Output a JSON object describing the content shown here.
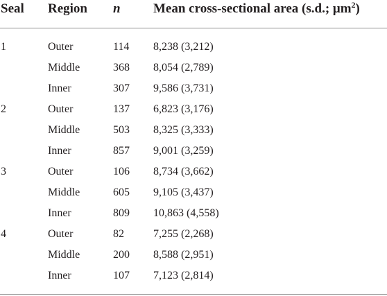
{
  "table": {
    "headers": {
      "seal": "Seal",
      "region": "Region",
      "n": "n",
      "area": "Mean cross-sectional area (s.d.; μm",
      "area_sup": "2",
      "area_close": ")"
    },
    "rows": [
      {
        "seal": "1",
        "region": "Outer",
        "n": "114",
        "area": "8,238 (3,212)"
      },
      {
        "seal": "",
        "region": "Middle",
        "n": "368",
        "area": "8,054 (2,789)"
      },
      {
        "seal": "",
        "region": "Inner",
        "n": "307",
        "area": "9,586 (3,731)"
      },
      {
        "seal": "2",
        "region": "Outer",
        "n": "137",
        "area": "6,823 (3,176)"
      },
      {
        "seal": "",
        "region": "Middle",
        "n": "503",
        "area": "8,325 (3,333)"
      },
      {
        "seal": "",
        "region": "Inner",
        "n": "857",
        "area": "9,001 (3,259)"
      },
      {
        "seal": "3",
        "region": "Outer",
        "n": "106",
        "area": "8,734 (3,662)"
      },
      {
        "seal": "",
        "region": "Middle",
        "n": "605",
        "area": "9,105 (3,437)"
      },
      {
        "seal": "",
        "region": "Inner",
        "n": "809",
        "area": "10,863 (4,558)"
      },
      {
        "seal": "4",
        "region": "Outer",
        "n": "82",
        "area": "7,255 (2,268)"
      },
      {
        "seal": "",
        "region": "Middle",
        "n": "200",
        "area": "8,588 (2,951)"
      },
      {
        "seal": "",
        "region": "Inner",
        "n": "107",
        "area": "7,123 (2,814)"
      }
    ]
  }
}
